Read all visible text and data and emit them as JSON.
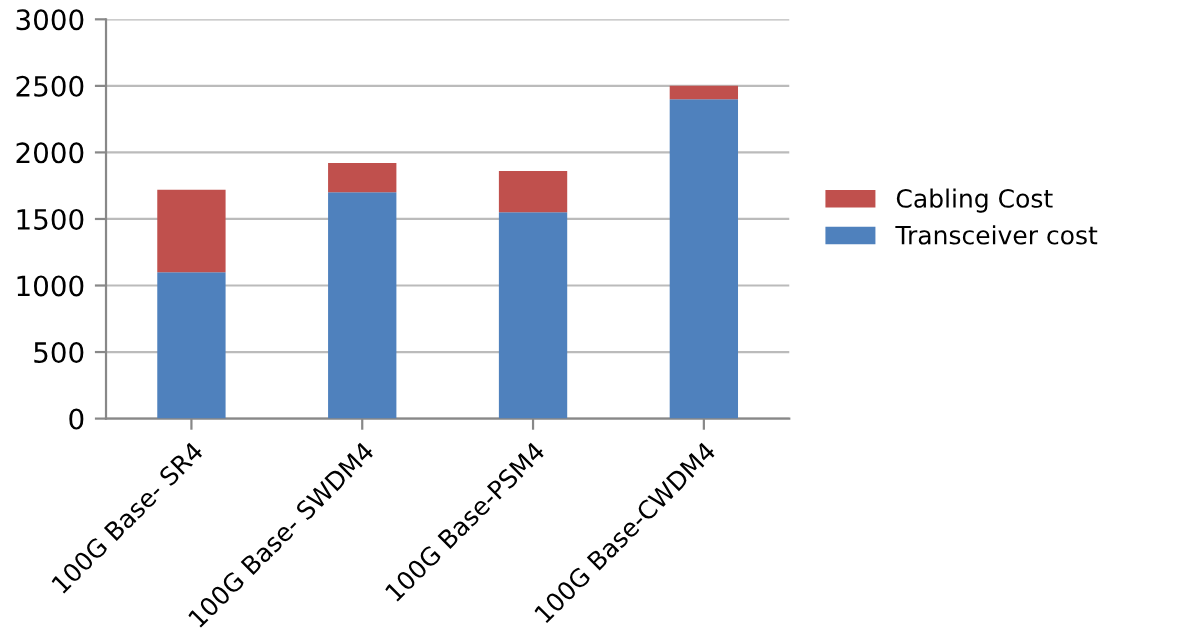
{
  "chart_data": {
    "type": "bar",
    "stacked": true,
    "categories": [
      "100G Base- SR4",
      "100G Base- SWDM4",
      "100G Base-PSM4",
      "100G Base-CWDM4"
    ],
    "series": [
      {
        "name": "Transceiver cost",
        "color": "#4f81bd",
        "values": [
          1100,
          1700,
          1550,
          2400
        ]
      },
      {
        "name": "Cabling Cost",
        "color": "#c0504d",
        "values": [
          620,
          220,
          310,
          100
        ]
      }
    ],
    "ylim": [
      0,
      3000
    ],
    "yticks": [
      0,
      500,
      1000,
      1500,
      2000,
      2500,
      3000
    ],
    "grid": "y",
    "legend": "right"
  }
}
